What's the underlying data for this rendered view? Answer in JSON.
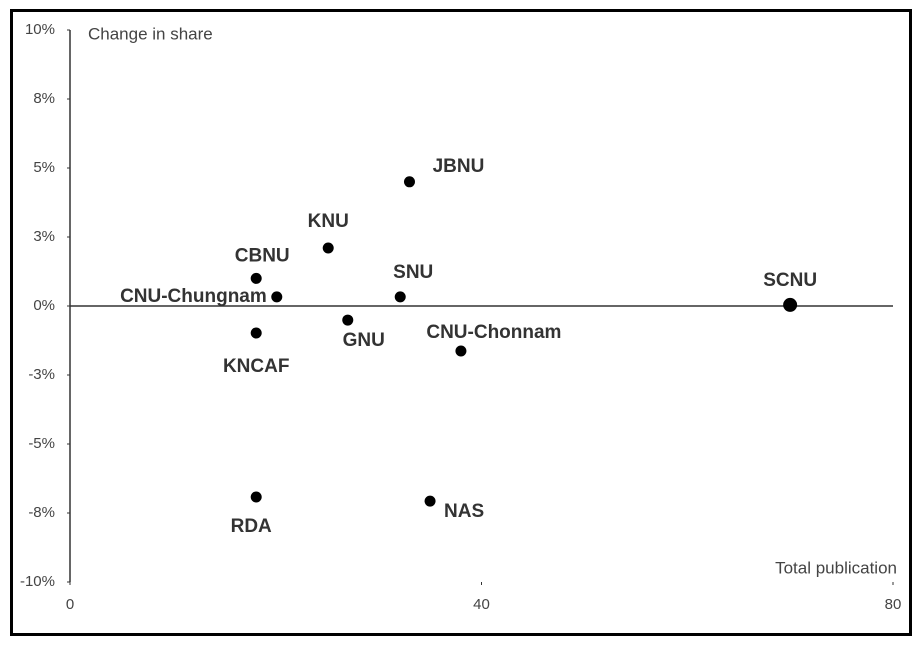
{
  "chart_data": {
    "type": "scatter",
    "ylabel": "Change in share",
    "xlabel": "Total publication",
    "xlim": [
      0,
      80
    ],
    "xticks": [
      0,
      40,
      80
    ],
    "ylim": [
      -10,
      10
    ],
    "yticks": [
      {
        "value": -10,
        "label": "-10%"
      },
      {
        "value": -7.5,
        "label": "-8%"
      },
      {
        "value": -5,
        "label": "-5%"
      },
      {
        "value": -2.5,
        "label": "-3%"
      },
      {
        "value": 0,
        "label": "0%"
      },
      {
        "value": 2.5,
        "label": "3%"
      },
      {
        "value": 5,
        "label": "5%"
      },
      {
        "value": 7.5,
        "label": "8%"
      },
      {
        "value": 10,
        "label": "10%"
      }
    ],
    "color": "#000000",
    "points": [
      {
        "label": "JBNU",
        "x": 33.0,
        "y": 4.5
      },
      {
        "label": "KNU",
        "x": 25.1,
        "y": 2.1
      },
      {
        "label": "CBNU",
        "x": 18.1,
        "y": 1.0
      },
      {
        "label": "CNU-Chungnam",
        "x": 20.1,
        "y": 0.33
      },
      {
        "label": "SNU",
        "x": 32.1,
        "y": 0.33
      },
      {
        "label": "SCNU",
        "x": 70.0,
        "y": 0.04
      },
      {
        "label": "GNU",
        "x": 27.0,
        "y": -0.51
      },
      {
        "label": "KNCAF",
        "x": 18.1,
        "y": -0.98
      },
      {
        "label": "CNU-Chonnam",
        "x": 38.0,
        "y": -1.63
      },
      {
        "label": "RDA",
        "x": 18.1,
        "y": -6.92
      },
      {
        "label": "NAS",
        "x": 35.0,
        "y": -7.07
      }
    ]
  }
}
